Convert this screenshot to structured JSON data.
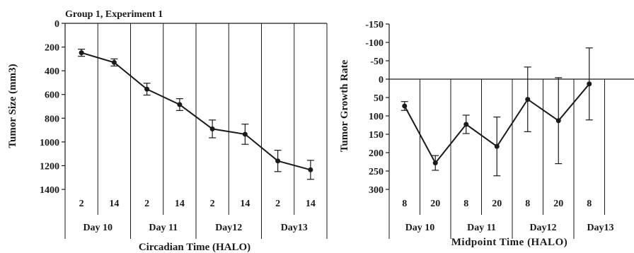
{
  "chart_data": [
    {
      "type": "line",
      "title": "Group 1,  Experiment 1",
      "xlabel": "Circadian Time (HALO)",
      "ylabel": "Tumor Size (mm3)",
      "ylim": [
        0,
        1400
      ],
      "yticks": [
        0,
        200,
        400,
        600,
        800,
        1000,
        1200,
        1400
      ],
      "categories": [
        "2",
        "14",
        "2",
        "14",
        "2",
        "14",
        "2",
        "14"
      ],
      "groups": [
        "Day 10",
        "Day 11",
        "Day12",
        "Day13"
      ],
      "values": [
        248,
        330,
        555,
        685,
        890,
        935,
        1160,
        1235
      ],
      "errors": [
        30,
        30,
        50,
        50,
        75,
        85,
        90,
        80
      ],
      "grid": false,
      "color": "#1a1a1a"
    },
    {
      "type": "line",
      "title": "",
      "xlabel": "Midpoint Time (HALO)",
      "ylabel": "Tumor Growth Rate",
      "ylim": [
        -150,
        300
      ],
      "yticks": [
        -150,
        -100,
        -50,
        0,
        50,
        100,
        150,
        200,
        250,
        300
      ],
      "categories": [
        "8",
        "20",
        "8",
        "20",
        "8",
        "20",
        "8"
      ],
      "groups": [
        "Day 10",
        "Day 11",
        "Day12",
        "Day13"
      ],
      "values": [
        73,
        228,
        123,
        183,
        55,
        113,
        13
      ],
      "errors": [
        12,
        20,
        25,
        80,
        88,
        117,
        98
      ],
      "grid": false,
      "color": "#1a1a1a"
    }
  ]
}
